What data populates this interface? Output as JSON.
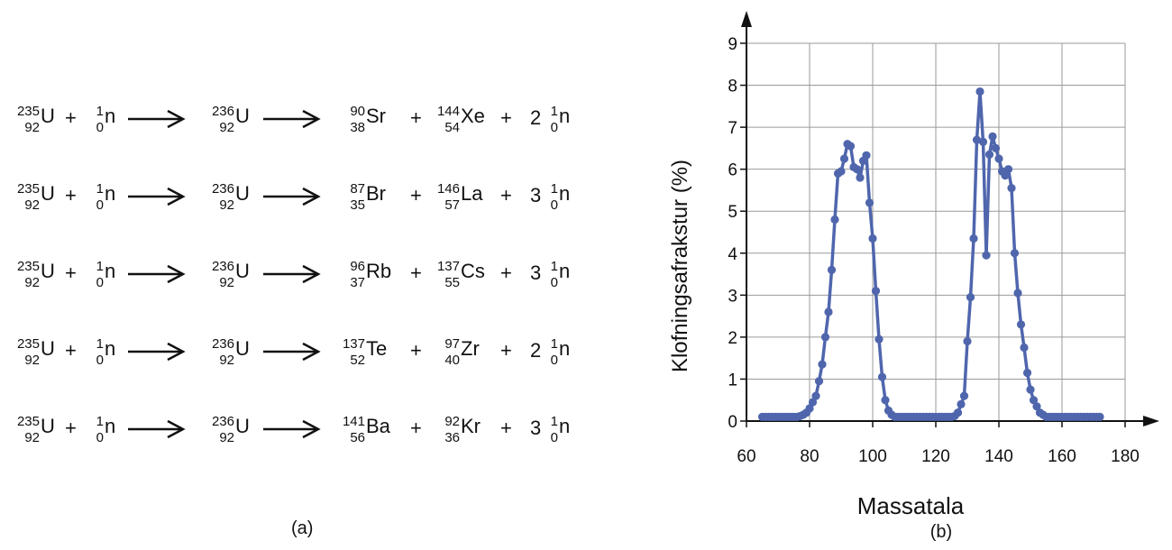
{
  "reactions": [
    {
      "terms": [
        {
          "mass": "235",
          "atomic": "92",
          "symbol": "U"
        },
        {
          "op": "+"
        },
        {
          "mass": "1",
          "atomic": "0",
          "symbol": "n"
        },
        {
          "arrow": true
        },
        {
          "mass": "236",
          "atomic": "92",
          "symbol": "U"
        },
        {
          "arrow": true
        },
        {
          "mass": "90",
          "atomic": "38",
          "symbol": "Sr"
        },
        {
          "op": "+"
        },
        {
          "mass": "144",
          "atomic": "54",
          "symbol": "Xe"
        },
        {
          "op": "+"
        },
        {
          "coef": "2"
        },
        {
          "mass": "1",
          "atomic": "0",
          "symbol": "n"
        }
      ]
    },
    {
      "terms": [
        {
          "mass": "235",
          "atomic": "92",
          "symbol": "U"
        },
        {
          "op": "+"
        },
        {
          "mass": "1",
          "atomic": "0",
          "symbol": "n"
        },
        {
          "arrow": true
        },
        {
          "mass": "236",
          "atomic": "92",
          "symbol": "U"
        },
        {
          "arrow": true
        },
        {
          "mass": "87",
          "atomic": "35",
          "symbol": "Br"
        },
        {
          "op": "+"
        },
        {
          "mass": "146",
          "atomic": "57",
          "symbol": "La"
        },
        {
          "op": "+"
        },
        {
          "coef": "3"
        },
        {
          "mass": "1",
          "atomic": "0",
          "symbol": "n"
        }
      ]
    },
    {
      "terms": [
        {
          "mass": "235",
          "atomic": "92",
          "symbol": "U"
        },
        {
          "op": "+"
        },
        {
          "mass": "1",
          "atomic": "0",
          "symbol": "n"
        },
        {
          "arrow": true
        },
        {
          "mass": "236",
          "atomic": "92",
          "symbol": "U"
        },
        {
          "arrow": true
        },
        {
          "mass": "96",
          "atomic": "37",
          "symbol": "Rb"
        },
        {
          "op": "+"
        },
        {
          "mass": "137",
          "atomic": "55",
          "symbol": "Cs"
        },
        {
          "op": "+"
        },
        {
          "coef": "3"
        },
        {
          "mass": "1",
          "atomic": "0",
          "symbol": "n"
        }
      ]
    },
    {
      "terms": [
        {
          "mass": "235",
          "atomic": "92",
          "symbol": "U"
        },
        {
          "op": "+"
        },
        {
          "mass": "1",
          "atomic": "0",
          "symbol": "n"
        },
        {
          "arrow": true
        },
        {
          "mass": "236",
          "atomic": "92",
          "symbol": "U"
        },
        {
          "arrow": true
        },
        {
          "mass": "137",
          "atomic": "52",
          "symbol": "Te"
        },
        {
          "op": "+"
        },
        {
          "mass": "97",
          "atomic": "40",
          "symbol": "Zr"
        },
        {
          "op": "+"
        },
        {
          "coef": "2"
        },
        {
          "mass": "1",
          "atomic": "0",
          "symbol": "n"
        }
      ]
    },
    {
      "terms": [
        {
          "mass": "235",
          "atomic": "92",
          "symbol": "U"
        },
        {
          "op": "+"
        },
        {
          "mass": "1",
          "atomic": "0",
          "symbol": "n"
        },
        {
          "arrow": true
        },
        {
          "mass": "236",
          "atomic": "92",
          "symbol": "U"
        },
        {
          "arrow": true
        },
        {
          "mass": "141",
          "atomic": "56",
          "symbol": "Ba"
        },
        {
          "op": "+"
        },
        {
          "mass": "92",
          "atomic": "36",
          "symbol": "Kr"
        },
        {
          "op": "+"
        },
        {
          "coef": "3"
        },
        {
          "mass": "1",
          "atomic": "0",
          "symbol": "n"
        }
      ]
    }
  ],
  "panel_a_label": "(a)",
  "panel_b_label": "(b)",
  "chart_data": {
    "type": "line",
    "xlabel": "Massatala",
    "ylabel": "Klofningsafrakstur (%)",
    "xlim": [
      60,
      180
    ],
    "ylim": [
      0,
      9
    ],
    "xticks": [
      60,
      80,
      100,
      120,
      140,
      160,
      180
    ],
    "yticks": [
      0,
      1,
      2,
      3,
      4,
      5,
      6,
      7,
      8,
      9
    ],
    "grid": true,
    "line_color": "#4f66ad",
    "series": [
      {
        "x": [
          65,
          66,
          67,
          68,
          69,
          70,
          71,
          72,
          73,
          74,
          75,
          76,
          77,
          78,
          79,
          80,
          81,
          82,
          83,
          84,
          85,
          86,
          87,
          88,
          89,
          90,
          91,
          92,
          93,
          94,
          95,
          96,
          97,
          98,
          99,
          100,
          101,
          102,
          103,
          104,
          105,
          106,
          107,
          108,
          109,
          110,
          111,
          112,
          113,
          114,
          115,
          116,
          117,
          118,
          119,
          120,
          121,
          122,
          123,
          124,
          125,
          126,
          127,
          128,
          129,
          130,
          131,
          132,
          133,
          134,
          135,
          136,
          137,
          138,
          139,
          140,
          141,
          142,
          143,
          144,
          145,
          146,
          147,
          148,
          149,
          150,
          151,
          152,
          153,
          154,
          155,
          156,
          157,
          158,
          159,
          160,
          161,
          162,
          163,
          164,
          165,
          166,
          167,
          168,
          169,
          170,
          171,
          172
        ],
        "y": [
          0.1,
          0.1,
          0.1,
          0.1,
          0.1,
          0.1,
          0.1,
          0.1,
          0.1,
          0.1,
          0.1,
          0.1,
          0.12,
          0.15,
          0.2,
          0.3,
          0.45,
          0.6,
          0.95,
          1.35,
          2.0,
          2.6,
          3.6,
          4.8,
          5.9,
          5.95,
          6.25,
          6.6,
          6.55,
          6.05,
          6.0,
          5.8,
          6.2,
          6.33,
          5.2,
          4.35,
          3.1,
          1.95,
          1.05,
          0.5,
          0.25,
          0.15,
          0.1,
          0.1,
          0.1,
          0.1,
          0.1,
          0.1,
          0.1,
          0.1,
          0.1,
          0.1,
          0.1,
          0.1,
          0.1,
          0.1,
          0.1,
          0.1,
          0.1,
          0.1,
          0.1,
          0.12,
          0.2,
          0.4,
          0.6,
          1.9,
          2.95,
          4.35,
          6.7,
          7.85,
          6.65,
          3.95,
          6.35,
          6.78,
          6.5,
          6.25,
          5.95,
          5.85,
          6.0,
          5.55,
          4.0,
          3.05,
          2.3,
          1.75,
          1.15,
          0.75,
          0.5,
          0.35,
          0.2,
          0.15,
          0.1,
          0.1,
          0.1,
          0.1,
          0.1,
          0.1,
          0.1,
          0.1,
          0.1,
          0.1,
          0.1,
          0.1,
          0.1,
          0.1,
          0.1,
          0.1,
          0.1,
          0.1
        ]
      }
    ]
  }
}
